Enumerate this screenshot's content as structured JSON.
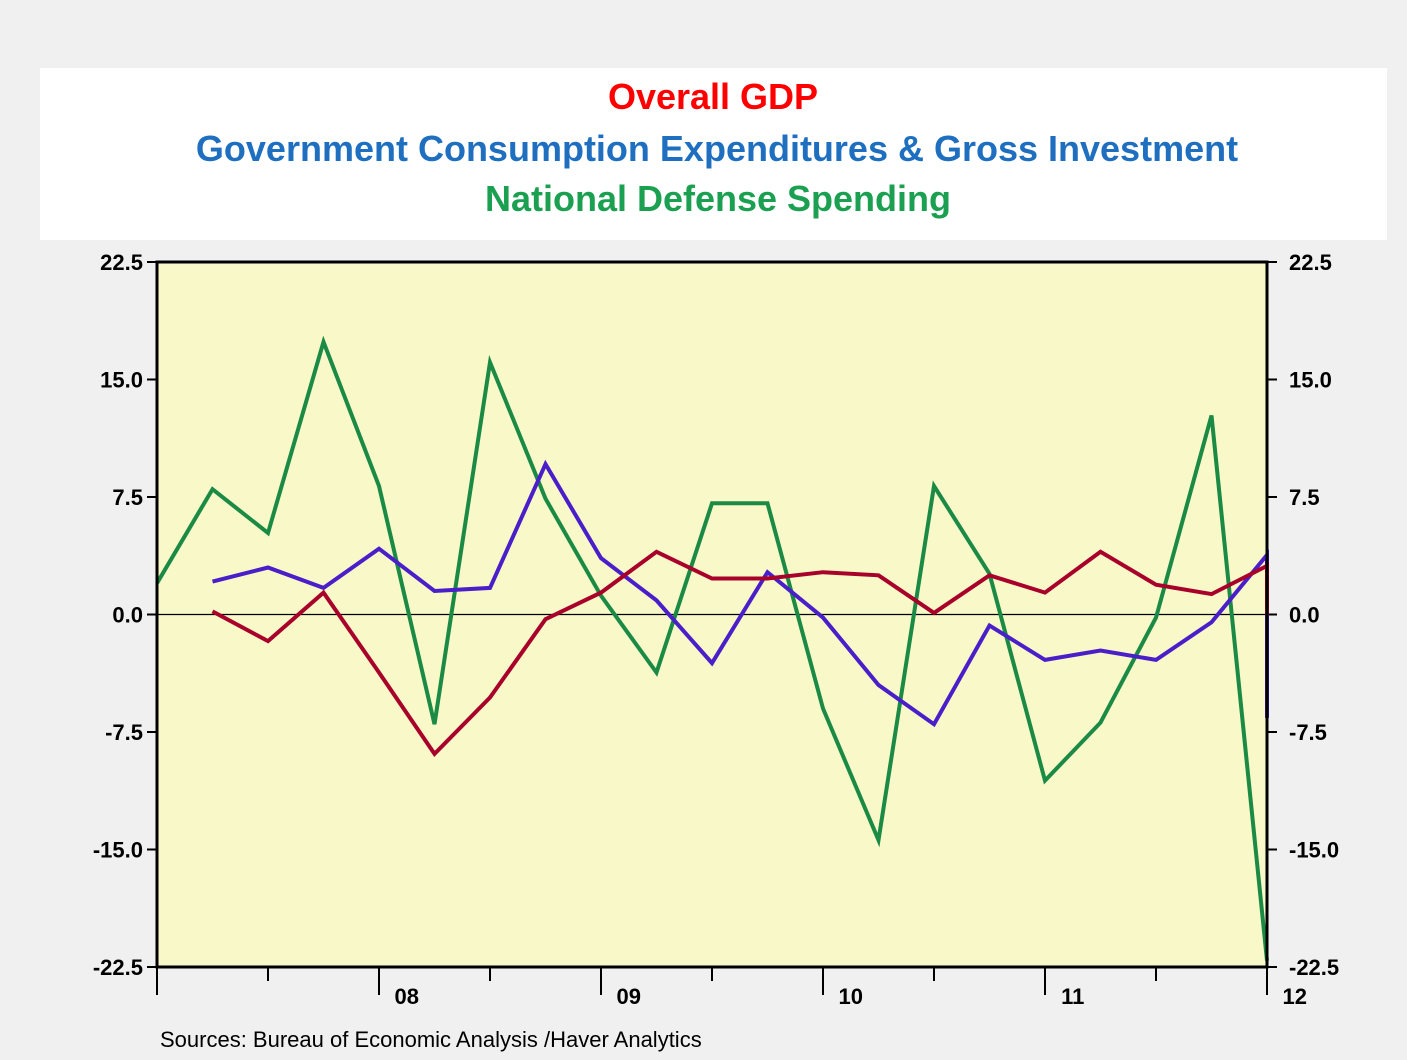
{
  "chart_data": {
    "type": "line",
    "title": "Overall GDP",
    "subtitles": [
      "Government Consumption Expenditures & Gross Investment",
      "National Defense Spending"
    ],
    "source": "Sources:  Bureau of Economic Analysis /Haver Analytics",
    "x_start": "2007-Q3",
    "x_tick_labels": [
      {
        "label": "08",
        "year": 2008
      },
      {
        "label": "09",
        "year": 2009
      },
      {
        "label": "10",
        "year": 2010
      },
      {
        "label": "11",
        "year": 2011
      },
      {
        "label": "12",
        "year": 2012
      }
    ],
    "ylim": [
      -22.5,
      22.5
    ],
    "y_ticks": [
      22.5,
      15.0,
      7.5,
      0.0,
      -7.5,
      -15.0,
      -22.5
    ],
    "y_tick_labels": [
      "22.5",
      "15.0",
      "7.5",
      "0.0",
      "-7.5",
      "-15.0",
      "-22.5"
    ],
    "zero_line": true,
    "plot_background": "#f8f8c8",
    "series": [
      {
        "key": "overall-gdp",
        "color": "#a8002a",
        "title_color": "#ff0000",
        "x": [
          "2007-Q3",
          "2007-Q4",
          "2008-Q1",
          "2008-Q2",
          "2008-Q3",
          "2008-Q4",
          "2009-Q1",
          "2009-Q2",
          "2009-Q3",
          "2009-Q4",
          "2010-Q1",
          "2010-Q2",
          "2010-Q3",
          "2010-Q4",
          "2011-Q1",
          "2011-Q2",
          "2011-Q3",
          "2011-Q4",
          "2012-Q1",
          "2012-Q2",
          "2012-Q3",
          "2012-Q4"
        ],
        "values": [
          0.2,
          -1.7,
          1.4,
          -3.7,
          -8.9,
          -5.3,
          -0.3,
          1.4,
          4.0,
          2.3,
          2.3,
          2.7,
          2.5,
          0.1,
          2.5,
          1.4,
          4.0,
          1.9,
          1.3,
          3.1,
          0.0,
          null
        ]
      },
      {
        "key": "government-consumption",
        "color": "#4a1ec8",
        "title_color": "#1f6fc0",
        "x": [
          "2007-Q3",
          "2007-Q4",
          "2008-Q1",
          "2008-Q2",
          "2008-Q3",
          "2008-Q4",
          "2009-Q1",
          "2009-Q2",
          "2009-Q3",
          "2009-Q4",
          "2010-Q1",
          "2010-Q2",
          "2010-Q3",
          "2010-Q4",
          "2011-Q1",
          "2011-Q2",
          "2011-Q3",
          "2011-Q4",
          "2012-Q1",
          "2012-Q2",
          "2012-Q3",
          "2012-Q4"
        ],
        "values": [
          2.1,
          3.0,
          1.7,
          4.2,
          1.5,
          1.7,
          9.6,
          3.6,
          0.9,
          -3.1,
          2.7,
          -0.2,
          -4.5,
          -7.0,
          -0.7,
          -2.9,
          -2.3,
          -2.9,
          -0.5,
          3.8,
          -6.6,
          null
        ]
      },
      {
        "key": "national-defense",
        "color": "#1a8a45",
        "title_color": "#1aa050",
        "x": [
          "2007-Q2",
          "2007-Q3",
          "2007-Q4",
          "2008-Q1",
          "2008-Q2",
          "2008-Q3",
          "2008-Q4",
          "2009-Q1",
          "2009-Q2",
          "2009-Q3",
          "2009-Q4",
          "2010-Q1",
          "2010-Q2",
          "2010-Q3",
          "2010-Q4",
          "2011-Q1",
          "2011-Q2",
          "2011-Q3",
          "2011-Q4",
          "2012-Q1",
          "2012-Q2",
          "2012-Q3",
          "2012-Q4"
        ],
        "values": [
          2.0,
          8.0,
          5.2,
          17.4,
          8.2,
          -7.0,
          16.1,
          7.4,
          1.2,
          -3.7,
          7.1,
          7.1,
          -6.0,
          -14.4,
          8.2,
          2.6,
          -10.6,
          -6.9,
          -0.2,
          12.7,
          -22.1,
          null,
          null
        ]
      }
    ]
  }
}
